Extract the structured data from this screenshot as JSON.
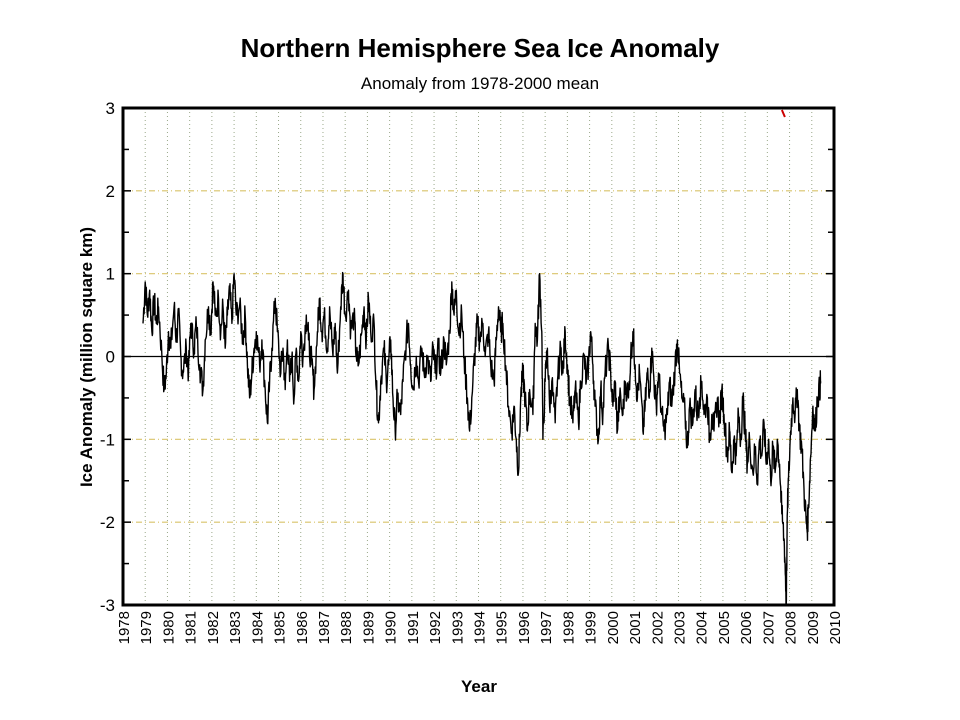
{
  "chart_data": {
    "type": "line",
    "title": "Northern Hemisphere Sea Ice Anomaly",
    "subtitle": "Anomaly from 1978-2000 mean",
    "xlabel": "Year",
    "ylabel": "Ice Anomaly (million square km)",
    "xlim": [
      1978,
      2010
    ],
    "ylim": [
      -3,
      3
    ],
    "xticks": [
      "1978",
      "1979",
      "1980",
      "1981",
      "1982",
      "1983",
      "1984",
      "1985",
      "1986",
      "1987",
      "1988",
      "1989",
      "1990",
      "1991",
      "1992",
      "1993",
      "1994",
      "1995",
      "1996",
      "1997",
      "1998",
      "1999",
      "2000",
      "2001",
      "2002",
      "2003",
      "2004",
      "2005",
      "2006",
      "2007",
      "2008",
      "2009",
      "2010"
    ],
    "yticks": [
      "3",
      "2",
      "1",
      "0",
      "-1",
      "-2",
      "-3"
    ],
    "grid": true,
    "zero_line": true,
    "colors": {
      "series": "#000000",
      "hgrid": "#d9c46a",
      "vgrid": "#9aa88a",
      "marker": "#cc0000"
    },
    "series": [
      {
        "name": "Northern Hemisphere sea ice anomaly",
        "points": [
          [
            1978.9,
            0.4
          ],
          [
            1979.0,
            0.9
          ],
          [
            1979.1,
            0.5
          ],
          [
            1979.2,
            0.8
          ],
          [
            1979.3,
            0.3
          ],
          [
            1979.4,
            0.7
          ],
          [
            1979.5,
            0.4
          ],
          [
            1979.6,
            0.6
          ],
          [
            1979.75,
            0.0
          ],
          [
            1979.85,
            -0.4
          ],
          [
            1979.95,
            -0.2
          ],
          [
            1980.05,
            0.3
          ],
          [
            1980.15,
            0.1
          ],
          [
            1980.3,
            0.6
          ],
          [
            1980.4,
            0.2
          ],
          [
            1980.5,
            0.5
          ],
          [
            1980.6,
            0.0
          ],
          [
            1980.7,
            -0.2
          ],
          [
            1980.85,
            0.1
          ],
          [
            1980.95,
            -0.2
          ],
          [
            1981.05,
            0.4
          ],
          [
            1981.2,
            0.1
          ],
          [
            1981.3,
            0.4
          ],
          [
            1981.45,
            -0.1
          ],
          [
            1981.6,
            -0.4
          ],
          [
            1981.7,
            0.2
          ],
          [
            1981.85,
            0.6
          ],
          [
            1981.95,
            0.3
          ],
          [
            1982.05,
            0.9
          ],
          [
            1982.15,
            0.5
          ],
          [
            1982.3,
            0.7
          ],
          [
            1982.4,
            0.3
          ],
          [
            1982.5,
            0.6
          ],
          [
            1982.6,
            0.1
          ],
          [
            1982.7,
            0.5
          ],
          [
            1982.8,
            0.8
          ],
          [
            1982.9,
            0.4
          ],
          [
            1983.0,
            1.0
          ],
          [
            1983.1,
            0.5
          ],
          [
            1983.25,
            0.6
          ],
          [
            1983.4,
            0.2
          ],
          [
            1983.5,
            0.5
          ],
          [
            1983.6,
            -0.1
          ],
          [
            1983.7,
            -0.5
          ],
          [
            1983.8,
            -0.2
          ],
          [
            1983.9,
            0.1
          ],
          [
            1984.0,
            0.3
          ],
          [
            1984.15,
            -0.1
          ],
          [
            1984.25,
            0.2
          ],
          [
            1984.4,
            -0.4
          ],
          [
            1984.5,
            -0.8
          ],
          [
            1984.6,
            -0.3
          ],
          [
            1984.7,
            0.1
          ],
          [
            1984.85,
            0.7
          ],
          [
            1984.95,
            0.3
          ],
          [
            1985.1,
            -0.2
          ],
          [
            1985.2,
            0.1
          ],
          [
            1985.3,
            -0.4
          ],
          [
            1985.4,
            0.2
          ],
          [
            1985.5,
            -0.3
          ],
          [
            1985.6,
            0.0
          ],
          [
            1985.7,
            -0.5
          ],
          [
            1985.8,
            0.1
          ],
          [
            1985.9,
            -0.3
          ],
          [
            1986.0,
            0.3
          ],
          [
            1986.1,
            0.0
          ],
          [
            1986.25,
            0.5
          ],
          [
            1986.35,
            0.2
          ],
          [
            1986.5,
            -0.1
          ],
          [
            1986.6,
            -0.4
          ],
          [
            1986.75,
            0.3
          ],
          [
            1986.85,
            0.7
          ],
          [
            1986.95,
            0.3
          ],
          [
            1987.05,
            0.5
          ],
          [
            1987.2,
            0.1
          ],
          [
            1987.3,
            0.6
          ],
          [
            1987.45,
            0.0
          ],
          [
            1987.55,
            0.4
          ],
          [
            1987.65,
            -0.2
          ],
          [
            1987.8,
            0.6
          ],
          [
            1987.9,
            1.0
          ],
          [
            1988.0,
            0.5
          ],
          [
            1988.15,
            0.8
          ],
          [
            1988.25,
            0.3
          ],
          [
            1988.4,
            0.5
          ],
          [
            1988.5,
            0.0
          ],
          [
            1988.6,
            -0.1
          ],
          [
            1988.75,
            0.3
          ],
          [
            1988.85,
            0.6
          ],
          [
            1988.95,
            0.2
          ],
          [
            1989.05,
            0.7
          ],
          [
            1989.15,
            0.3
          ],
          [
            1989.3,
            0.4
          ],
          [
            1989.4,
            -0.4
          ],
          [
            1989.5,
            -0.8
          ],
          [
            1989.6,
            -0.3
          ],
          [
            1989.75,
            0.1
          ],
          [
            1989.85,
            -0.3
          ],
          [
            1989.95,
            -0.1
          ],
          [
            1990.05,
            0.2
          ],
          [
            1990.15,
            -0.5
          ],
          [
            1990.25,
            -0.9
          ],
          [
            1990.35,
            -0.5
          ],
          [
            1990.5,
            -0.7
          ],
          [
            1990.6,
            -0.3
          ],
          [
            1990.75,
            0.2
          ],
          [
            1990.85,
            0.4
          ],
          [
            1990.95,
            -0.1
          ],
          [
            1991.05,
            -0.4
          ],
          [
            1991.2,
            0.0
          ],
          [
            1991.3,
            -0.3
          ],
          [
            1991.45,
            0.1
          ],
          [
            1991.55,
            -0.2
          ],
          [
            1991.7,
            0.0
          ],
          [
            1991.85,
            -0.3
          ],
          [
            1991.95,
            0.1
          ],
          [
            1992.05,
            -0.2
          ],
          [
            1992.2,
            0.1
          ],
          [
            1992.3,
            -0.2
          ],
          [
            1992.45,
            0.2
          ],
          [
            1992.55,
            -0.1
          ],
          [
            1992.7,
            0.3
          ],
          [
            1992.8,
            0.9
          ],
          [
            1992.9,
            0.5
          ],
          [
            1993.0,
            0.8
          ],
          [
            1993.1,
            0.3
          ],
          [
            1993.25,
            0.5
          ],
          [
            1993.35,
            0.0
          ],
          [
            1993.5,
            -0.5
          ],
          [
            1993.6,
            -0.9
          ],
          [
            1993.75,
            -0.3
          ],
          [
            1993.85,
            0.1
          ],
          [
            1993.95,
            0.4
          ],
          [
            1994.05,
            0.2
          ],
          [
            1994.2,
            0.4
          ],
          [
            1994.3,
            0.0
          ],
          [
            1994.45,
            0.3
          ],
          [
            1994.55,
            -0.1
          ],
          [
            1994.7,
            -0.3
          ],
          [
            1994.8,
            0.2
          ],
          [
            1994.9,
            0.6
          ],
          [
            1995.0,
            0.3
          ],
          [
            1995.1,
            0.4
          ],
          [
            1995.25,
            -0.2
          ],
          [
            1995.35,
            -0.6
          ],
          [
            1995.5,
            -0.9
          ],
          [
            1995.6,
            -0.6
          ],
          [
            1995.7,
            -1.0
          ],
          [
            1995.8,
            -1.4
          ],
          [
            1995.9,
            -0.5
          ],
          [
            1996.0,
            -0.2
          ],
          [
            1996.1,
            -0.5
          ],
          [
            1996.2,
            -0.9
          ],
          [
            1996.3,
            -0.4
          ],
          [
            1996.45,
            -0.7
          ],
          [
            1996.55,
            0.4
          ],
          [
            1996.65,
            0.2
          ],
          [
            1996.75,
            1.0
          ],
          [
            1996.85,
            0.3
          ],
          [
            1996.9,
            -1.0
          ],
          [
            1997.0,
            -0.3
          ],
          [
            1997.1,
            0.1
          ],
          [
            1997.2,
            -0.6
          ],
          [
            1997.3,
            -0.3
          ],
          [
            1997.45,
            -0.8
          ],
          [
            1997.55,
            -0.3
          ],
          [
            1997.7,
            0.1
          ],
          [
            1997.8,
            -0.2
          ],
          [
            1997.9,
            0.3
          ],
          [
            1998.0,
            -0.1
          ],
          [
            1998.1,
            -0.5
          ],
          [
            1998.25,
            -0.8
          ],
          [
            1998.35,
            -0.4
          ],
          [
            1998.5,
            -0.8
          ],
          [
            1998.6,
            -0.3
          ],
          [
            1998.75,
            0.0
          ],
          [
            1998.85,
            -0.3
          ],
          [
            1998.95,
            -0.1
          ],
          [
            1999.05,
            0.3
          ],
          [
            1999.15,
            -0.1
          ],
          [
            1999.25,
            -0.6
          ],
          [
            1999.4,
            -1.0
          ],
          [
            1999.5,
            -0.4
          ],
          [
            1999.6,
            -0.7
          ],
          [
            1999.7,
            -0.2
          ],
          [
            1999.85,
            0.1
          ],
          [
            1999.95,
            -0.2
          ],
          [
            2000.05,
            -0.6
          ],
          [
            2000.15,
            -0.3
          ],
          [
            2000.25,
            -0.9
          ],
          [
            2000.35,
            -0.5
          ],
          [
            2000.5,
            -0.7
          ],
          [
            2000.6,
            -0.3
          ],
          [
            2000.75,
            -0.5
          ],
          [
            2000.85,
            0.0
          ],
          [
            2000.95,
            0.3
          ],
          [
            2001.05,
            -0.1
          ],
          [
            2001.15,
            -0.5
          ],
          [
            2001.25,
            -0.2
          ],
          [
            2001.4,
            -0.9
          ],
          [
            2001.5,
            -0.6
          ],
          [
            2001.6,
            -0.2
          ],
          [
            2001.7,
            -0.4
          ],
          [
            2001.8,
            0.1
          ],
          [
            2001.9,
            -0.3
          ],
          [
            2002.0,
            -0.6
          ],
          [
            2002.1,
            -0.2
          ],
          [
            2002.25,
            -0.7
          ],
          [
            2002.35,
            -0.9
          ],
          [
            2002.5,
            -0.7
          ],
          [
            2002.6,
            -0.3
          ],
          [
            2002.7,
            -0.6
          ],
          [
            2002.85,
            -0.1
          ],
          [
            2002.95,
            0.2
          ],
          [
            2003.05,
            -0.2
          ],
          [
            2003.15,
            -0.5
          ],
          [
            2003.3,
            -0.7
          ],
          [
            2003.4,
            -1.1
          ],
          [
            2003.5,
            -0.6
          ],
          [
            2003.65,
            -0.8
          ],
          [
            2003.75,
            -0.4
          ],
          [
            2003.85,
            -0.7
          ],
          [
            2003.95,
            -0.5
          ],
          [
            2004.05,
            -0.3
          ],
          [
            2004.15,
            -0.7
          ],
          [
            2004.3,
            -0.5
          ],
          [
            2004.4,
            -1.0
          ],
          [
            2004.5,
            -0.7
          ],
          [
            2004.6,
            -0.9
          ],
          [
            2004.75,
            -0.5
          ],
          [
            2004.85,
            -0.8
          ],
          [
            2004.95,
            -0.4
          ],
          [
            2005.05,
            -0.7
          ],
          [
            2005.2,
            -1.2
          ],
          [
            2005.3,
            -0.9
          ],
          [
            2005.4,
            -1.4
          ],
          [
            2005.5,
            -1.0
          ],
          [
            2005.6,
            -1.2
          ],
          [
            2005.7,
            -0.7
          ],
          [
            2005.8,
            -1.0
          ],
          [
            2005.9,
            -0.5
          ],
          [
            2006.0,
            -0.9
          ],
          [
            2006.1,
            -1.3
          ],
          [
            2006.2,
            -1.0
          ],
          [
            2006.35,
            -1.4
          ],
          [
            2006.45,
            -1.1
          ],
          [
            2006.55,
            -1.5
          ],
          [
            2006.65,
            -1.0
          ],
          [
            2006.75,
            -1.2
          ],
          [
            2006.85,
            -0.8
          ],
          [
            2006.95,
            -1.3
          ],
          [
            2007.05,
            -1.0
          ],
          [
            2007.15,
            -1.5
          ],
          [
            2007.25,
            -1.1
          ],
          [
            2007.35,
            -1.4
          ],
          [
            2007.45,
            -1.0
          ],
          [
            2007.55,
            -1.3
          ],
          [
            2007.65,
            -1.9
          ],
          [
            2007.75,
            -2.2
          ],
          [
            2007.8,
            -2.5
          ],
          [
            2007.85,
            -3.0
          ],
          [
            2007.9,
            -1.9
          ],
          [
            2007.95,
            -1.5
          ],
          [
            2008.05,
            -0.9
          ],
          [
            2008.15,
            -0.5
          ],
          [
            2008.25,
            -0.7
          ],
          [
            2008.35,
            -0.4
          ],
          [
            2008.45,
            -0.9
          ],
          [
            2008.55,
            -1.1
          ],
          [
            2008.65,
            -1.6
          ],
          [
            2008.75,
            -2.0
          ],
          [
            2008.8,
            -2.1
          ],
          [
            2008.85,
            -1.8
          ],
          [
            2008.95,
            -1.2
          ],
          [
            2009.05,
            -0.6
          ],
          [
            2009.15,
            -0.9
          ],
          [
            2009.25,
            -0.5
          ],
          [
            2009.35,
            -0.4
          ],
          [
            2009.4,
            -0.3
          ]
        ]
      }
    ]
  }
}
